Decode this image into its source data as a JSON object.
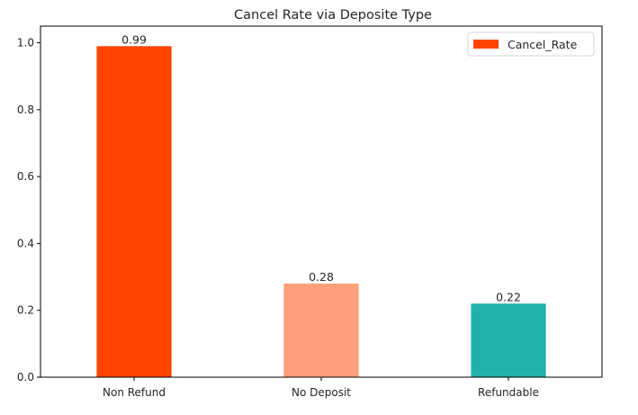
{
  "chart_data": {
    "type": "bar",
    "title": "Cancel Rate via Deposite Type",
    "xlabel": "",
    "ylabel": "",
    "categories": [
      "Non Refund",
      "No Deposit",
      "Refundable"
    ],
    "series": [
      {
        "name": "Cancel_Rate",
        "values": [
          0.99,
          0.28,
          0.22
        ]
      }
    ],
    "data_labels": [
      "0.99",
      "0.28",
      "0.22"
    ],
    "bar_colors": [
      "#ff4500",
      "#ffa07a",
      "#20b2aa"
    ],
    "legend_color": "#ff4500",
    "ylim": [
      0,
      1.05
    ],
    "yticks": [
      0.0,
      0.2,
      0.4,
      0.6,
      0.8,
      1.0
    ],
    "ytick_labels": [
      "0.0",
      "0.2",
      "0.4",
      "0.6",
      "0.8",
      "1.0"
    ],
    "grid": false,
    "legend_position": "top-right"
  }
}
